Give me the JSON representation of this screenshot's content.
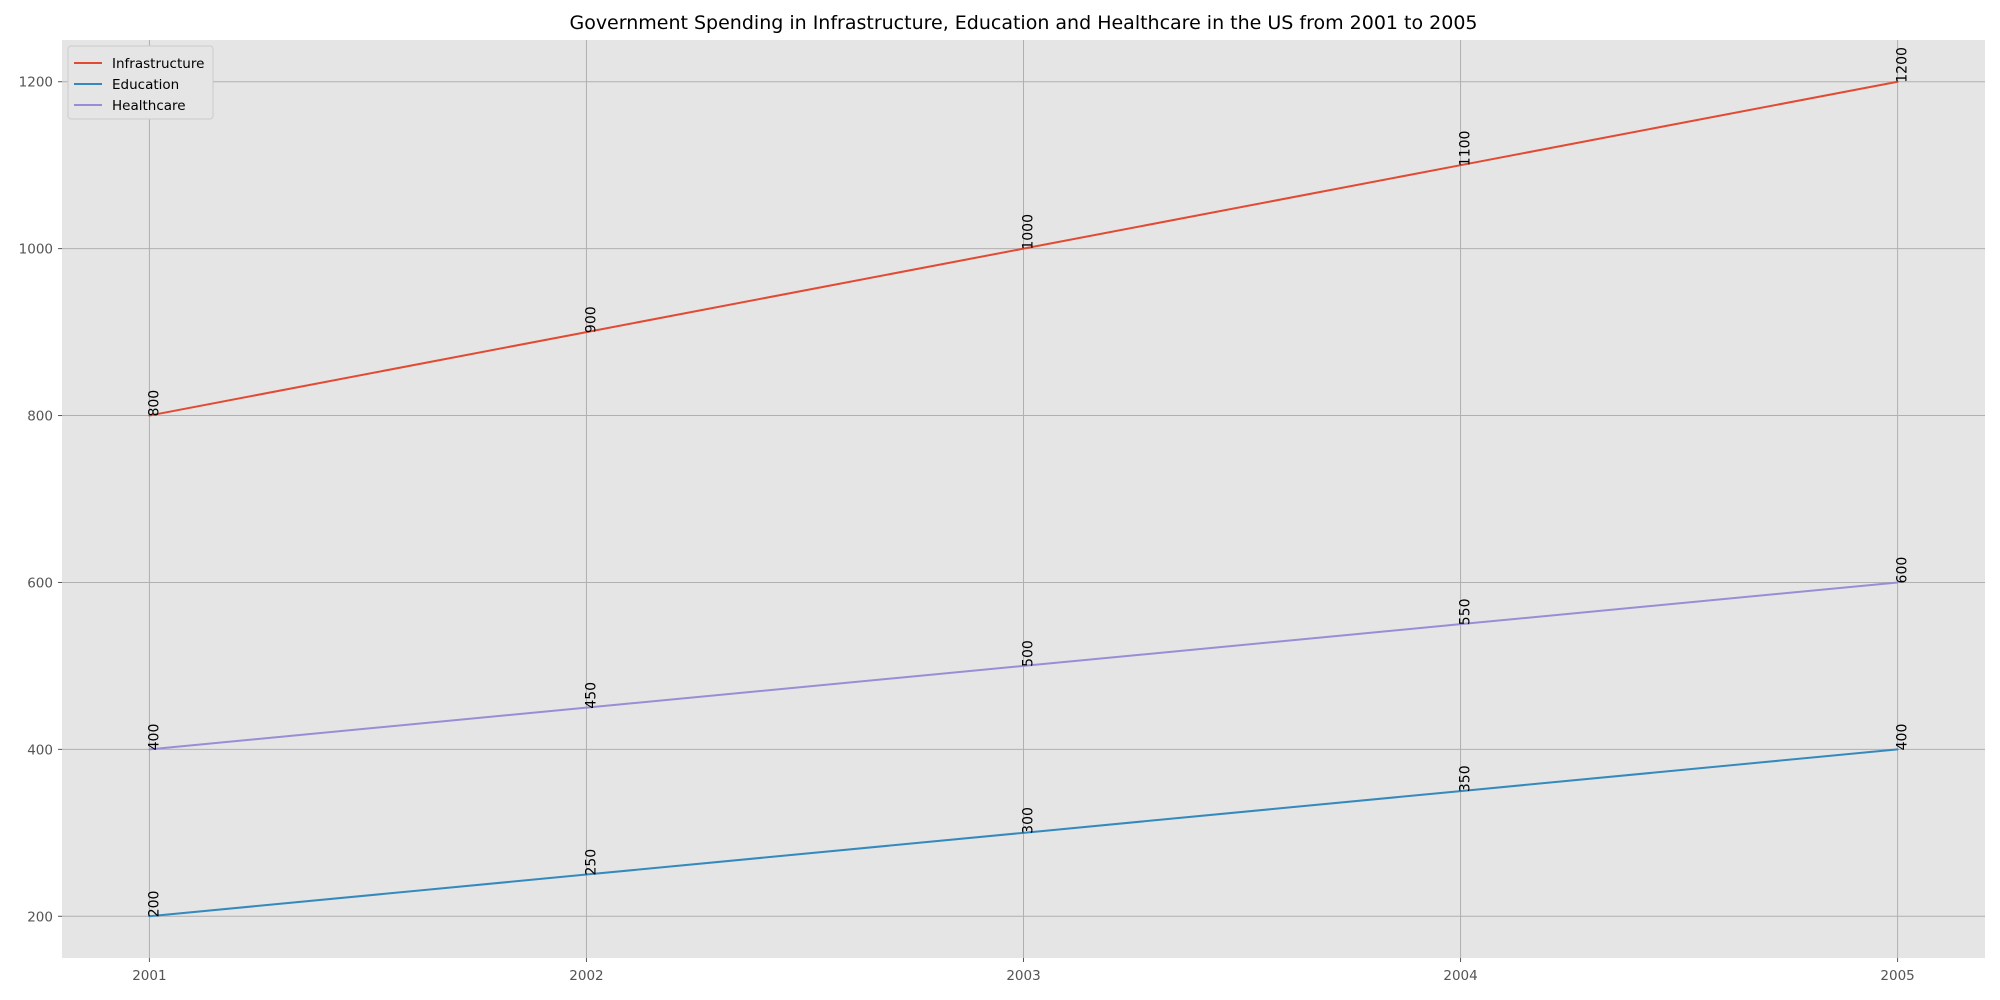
{
  "chart_data": {
    "type": "line",
    "title": "Government Spending in Infrastructure, Education and Healthcare in the US from 2001 to 2005",
    "xlabel": "",
    "ylabel": "",
    "x": [
      "2001",
      "2002",
      "2003",
      "2004",
      "2005"
    ],
    "xlim": [
      2000.8,
      2005.2
    ],
    "ylim": [
      150,
      1250
    ],
    "yticks": [
      200,
      400,
      600,
      800,
      1000,
      1200
    ],
    "grid": true,
    "legend_position": "upper-left",
    "data_labels": true,
    "series": [
      {
        "name": "Infrastructure",
        "values": [
          800,
          900,
          1000,
          1100,
          1200
        ],
        "color": "#E24A33"
      },
      {
        "name": "Education",
        "values": [
          200,
          250,
          300,
          350,
          400
        ],
        "color": "#348ABD"
      },
      {
        "name": "Healthcare",
        "values": [
          400,
          450,
          500,
          550,
          600
        ],
        "color": "#988ED5"
      }
    ],
    "colors": {
      "plot_background": "#E5E5E5",
      "grid": "#B0B0B0",
      "legend_background": "#E5E5E5",
      "legend_border": "#CCCCCC"
    }
  }
}
